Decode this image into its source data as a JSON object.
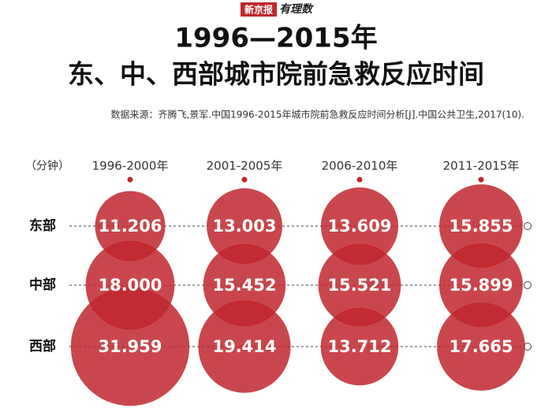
{
  "brand": "新京报",
  "brand_column": "有理数",
  "chart_data": {
    "type": "bubble",
    "title": "1996—2015年",
    "subtitle": "东、中、西部城市院前急救反应时间",
    "source": "数据来源：齐腾飞,景军.中国1996-2015年城市院前急救反应时间分析[J].中国公共卫生,2017(10).",
    "unit_label": "（分钟）",
    "categories": [
      "1996-2000年",
      "2001-2005年",
      "2006-2010年",
      "2011-2015年"
    ],
    "series": [
      {
        "name": "东部",
        "color": "#c0272d",
        "values": [
          11.206,
          13.003,
          13.609,
          15.855
        ],
        "value_labels": [
          "11.206",
          "13.003",
          "13.609",
          "15.855"
        ]
      },
      {
        "name": "中部",
        "color": "#c0272d",
        "values": [
          18.0,
          15.452,
          15.521,
          15.899
        ],
        "value_labels": [
          "18.000",
          "15.452",
          "15.521",
          "15.899"
        ]
      },
      {
        "name": "西部",
        "color": "#c0272d",
        "values": [
          31.959,
          19.414,
          13.712,
          17.665
        ],
        "value_labels": [
          "31.959",
          "19.414",
          "13.712",
          "17.665"
        ]
      }
    ]
  }
}
